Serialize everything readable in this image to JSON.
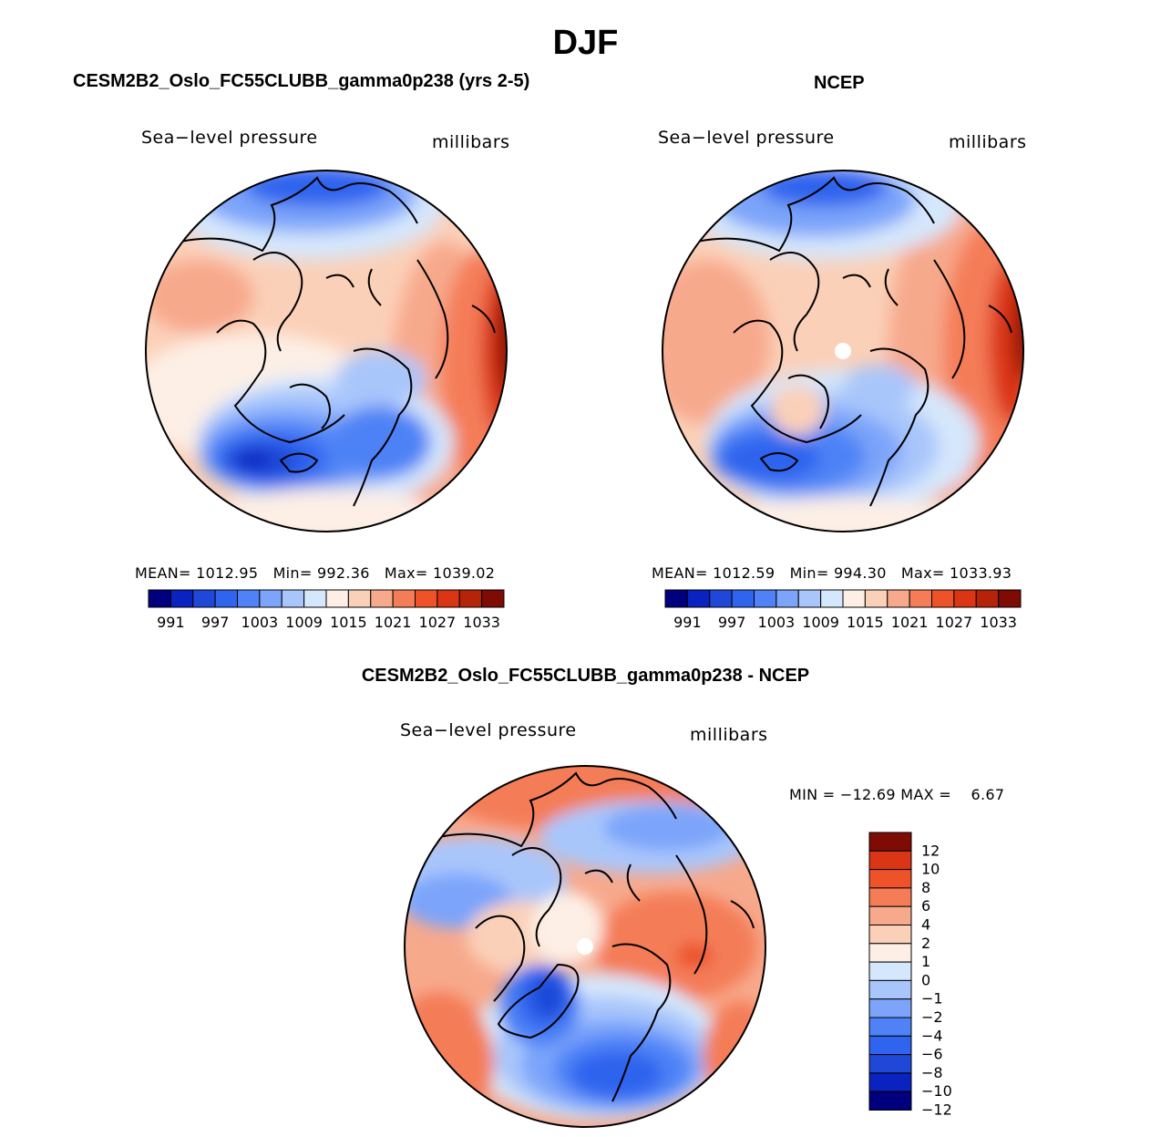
{
  "page": {
    "title": "DJF"
  },
  "panels": [
    {
      "id": "model",
      "title": "CESM2B2_Oslo_FC55CLUBB_gamma0p238 (yrs 2-5)",
      "variable": "Sea−level pressure",
      "units": "millibars",
      "stats": {
        "mean_label": "MEAN=",
        "mean": "1012.95",
        "min_label": "Min=",
        "min": "992.36",
        "max_label": "Max=",
        "max": "1039.02"
      },
      "missing_pole": false
    },
    {
      "id": "obs",
      "title": "NCEP",
      "variable": "Sea−level pressure",
      "units": "millibars",
      "stats": {
        "mean_label": "MEAN=",
        "mean": "1012.59",
        "min_label": "Min=",
        "min": "994.30",
        "max_label": "Max=",
        "max": "1033.93"
      },
      "missing_pole": true
    },
    {
      "id": "diff",
      "title": "CESM2B2_Oslo_FC55CLUBB_gamma0p238 - NCEP",
      "variable": "Sea−level pressure",
      "units": "millibars",
      "stats_text": "MIN = −12.69 MAX =    6.67",
      "missing_pole": true
    }
  ],
  "colorbars": {
    "abs": {
      "colors": [
        "#00007f",
        "#0a22c0",
        "#1f48d8",
        "#2f64ee",
        "#4e82f6",
        "#7ba4fa",
        "#a9c6fb",
        "#d5e7fc",
        "#fdefe5",
        "#fbd0b8",
        "#f7a98c",
        "#f47d58",
        "#ed5229",
        "#da3515",
        "#b52309",
        "#7e0c05"
      ],
      "tick_labels": [
        "991",
        "997",
        "1003",
        "1009",
        "1015",
        "1021",
        "1027",
        "1033"
      ]
    },
    "diff": {
      "colors": [
        "#00007f",
        "#0a22c0",
        "#1f48d8",
        "#2f64ee",
        "#4e82f6",
        "#7ba4fa",
        "#a9c6fb",
        "#d5e7fc",
        "#fdefe5",
        "#fbd0b8",
        "#f7a98c",
        "#f47d58",
        "#ed5229",
        "#da3515",
        "#7e0c05"
      ],
      "tick_labels": [
        "12",
        "10",
        "8",
        "6",
        "4",
        "2",
        "1",
        "0",
        "−1",
        "−2",
        "−4",
        "−6",
        "−8",
        "−10",
        "−12"
      ]
    }
  }
}
